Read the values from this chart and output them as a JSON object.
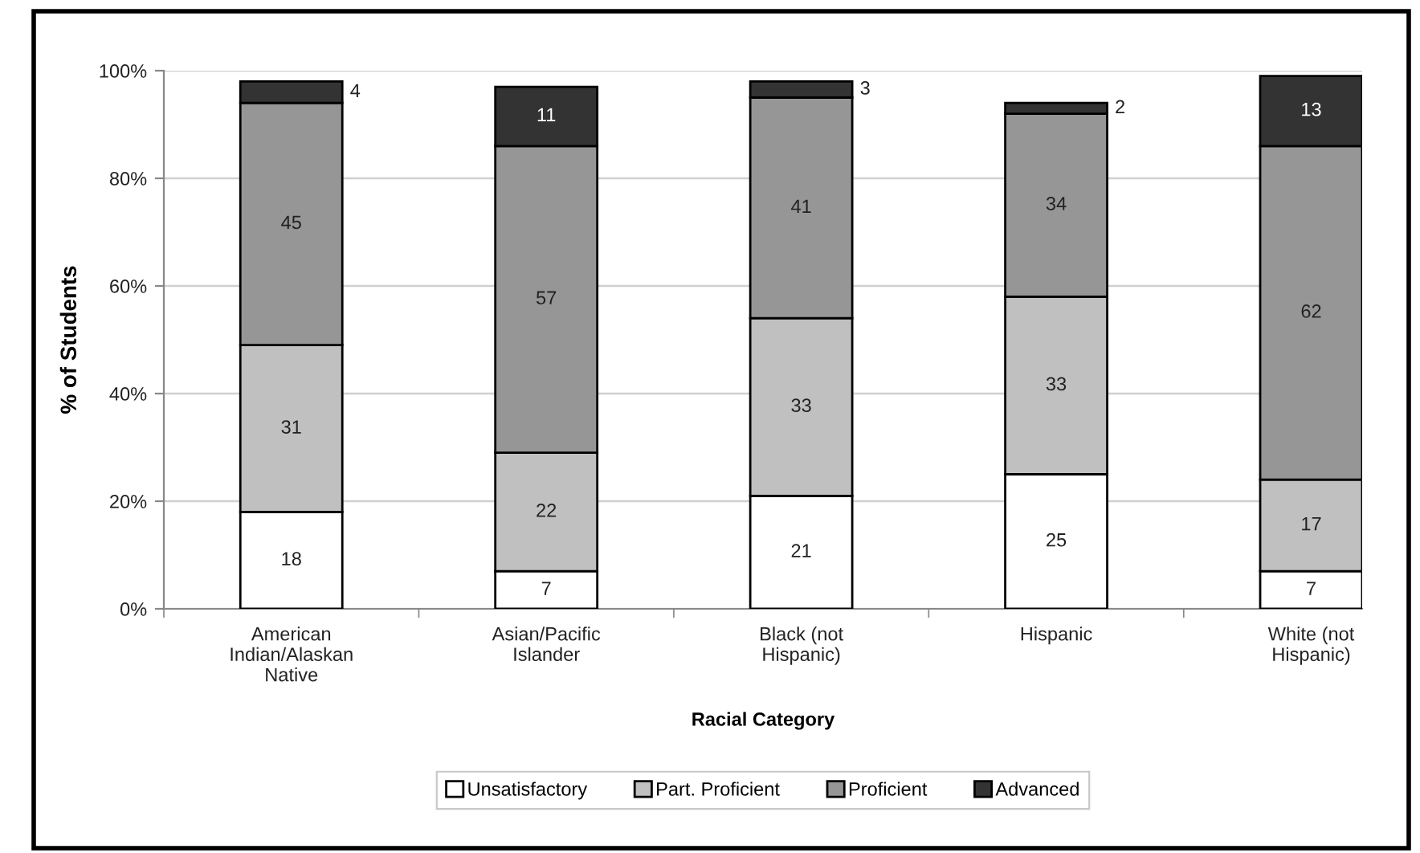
{
  "chart_data": {
    "type": "bar",
    "stacked": true,
    "xlabel": "Racial Category",
    "ylabel": "% of Students",
    "categories": [
      "American\nIndian/Alaskan\nNative",
      "Asian/Pacific\nIslander",
      "Black (not\nHispanic)",
      "Hispanic",
      "White (not\nHispanic)"
    ],
    "series": [
      {
        "name": "Unsatisfactory",
        "color": "#ffffff",
        "values": [
          18,
          7,
          21,
          25,
          7
        ]
      },
      {
        "name": "Part. Proficient",
        "color": "#c0c0c0",
        "values": [
          31,
          22,
          33,
          33,
          17
        ]
      },
      {
        "name": "Proficient",
        "color": "#969696",
        "values": [
          45,
          57,
          41,
          34,
          62
        ]
      },
      {
        "name": "Advanced",
        "color": "#333333",
        "values": [
          4,
          11,
          3,
          2,
          13
        ]
      }
    ],
    "ylim": [
      0,
      100
    ],
    "yticks": [
      {
        "value": 0,
        "label": "0%"
      },
      {
        "value": 20,
        "label": "20%"
      },
      {
        "value": 40,
        "label": "40%"
      },
      {
        "value": 60,
        "label": "60%"
      },
      {
        "value": 80,
        "label": "80%"
      },
      {
        "value": 100,
        "label": "100%"
      }
    ],
    "grid": "y",
    "legend": "bottom",
    "data_labels": true
  }
}
